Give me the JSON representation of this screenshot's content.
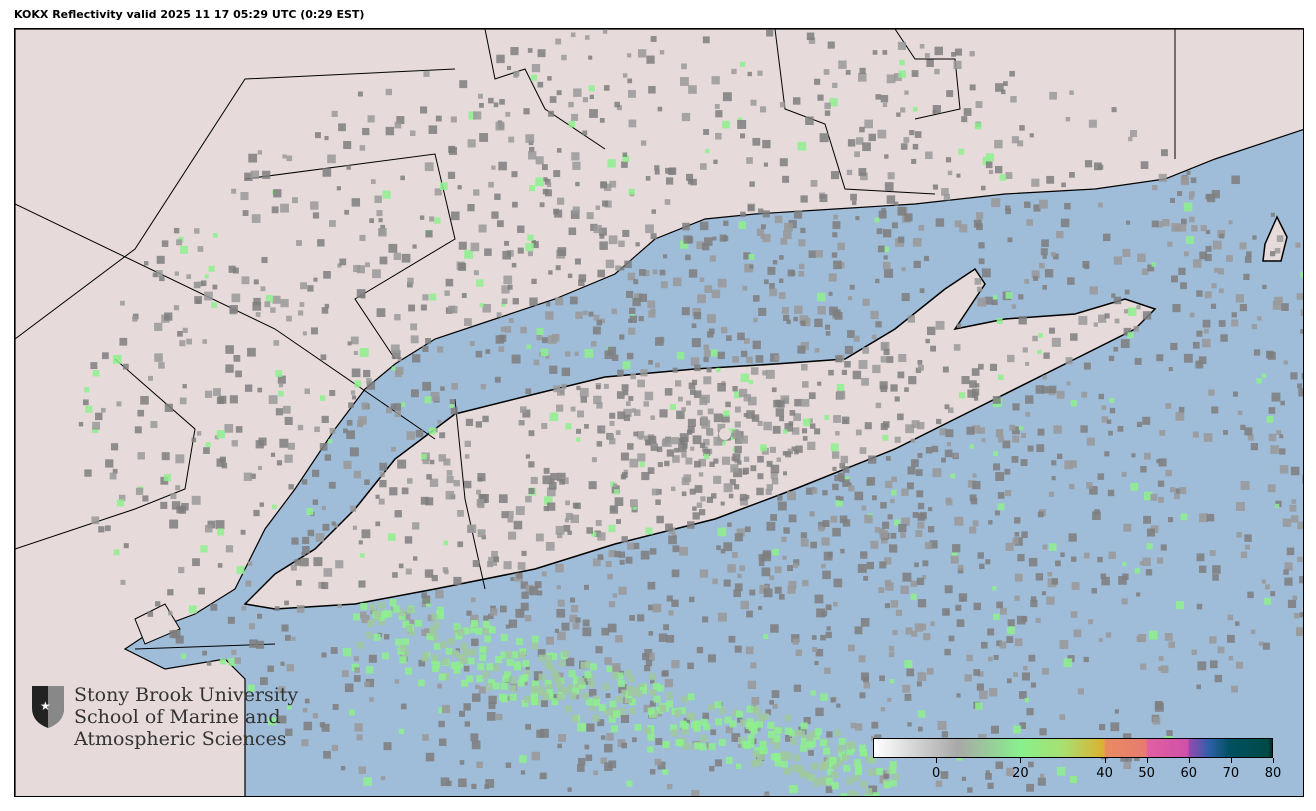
{
  "title": "KOKX Reflectivity valid 2025 11 17 05:29 UTC (0:29 EST)",
  "map": {
    "radar_site": "KOKX",
    "colors": {
      "ocean": "#9fbcd8",
      "land": "#e6dada",
      "border": "#000000",
      "echo_gray": "#8a8a8a",
      "echo_green": "#8ef08e"
    }
  },
  "logo": {
    "lines": [
      "Stony Brook University",
      "School of Marine and",
      "Atmospheric Sciences"
    ],
    "icon": "shield-star-icon"
  },
  "colorbar": {
    "range": [
      -15,
      80
    ],
    "ticks": [
      "0",
      "20",
      "40",
      "50",
      "60",
      "70",
      "80"
    ],
    "tick_values": [
      0,
      20,
      40,
      50,
      60,
      70,
      80
    ],
    "stops": [
      {
        "v": -15,
        "c": "#ffffff"
      },
      {
        "v": 5,
        "c": "#a8a8a8"
      },
      {
        "v": 20,
        "c": "#88f08c"
      },
      {
        "v": 30,
        "c": "#a8e070"
      },
      {
        "v": 40,
        "c": "#dcb030"
      },
      {
        "v": 40.1,
        "c": "#e88c60"
      },
      {
        "v": 50,
        "c": "#e87a70"
      },
      {
        "v": 50.1,
        "c": "#e060a0"
      },
      {
        "v": 60,
        "c": "#d050a8"
      },
      {
        "v": 60.1,
        "c": "#9848b0"
      },
      {
        "v": 65,
        "c": "#3060a8"
      },
      {
        "v": 70,
        "c": "#005060"
      },
      {
        "v": 79,
        "c": "#004a48"
      },
      {
        "v": 80,
        "c": "#003020"
      }
    ]
  }
}
